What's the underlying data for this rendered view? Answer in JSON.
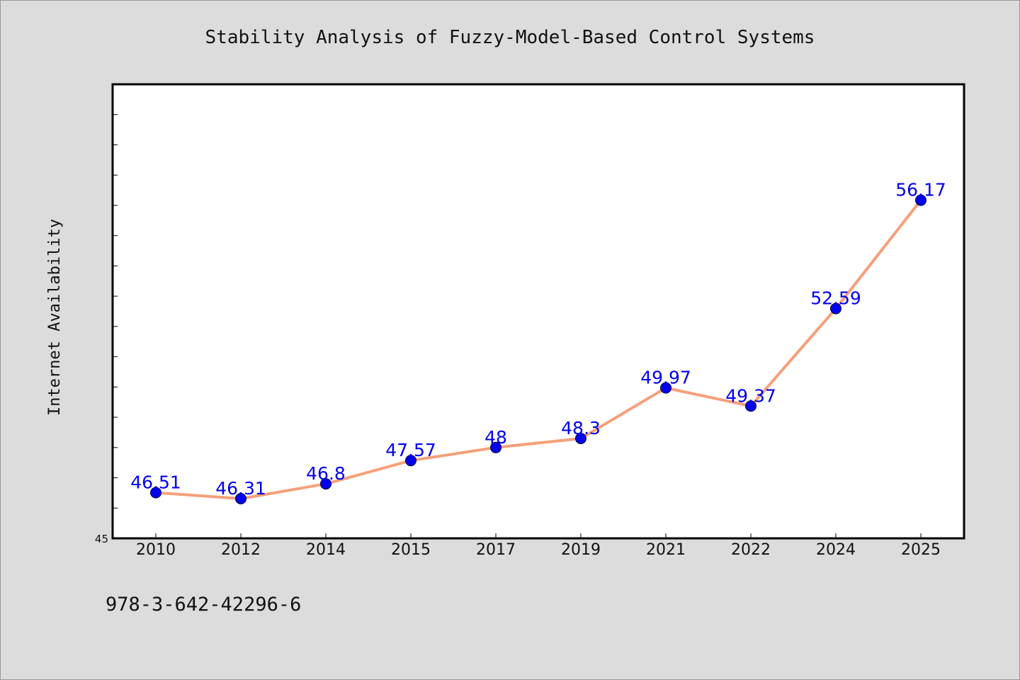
{
  "chart_data": {
    "type": "line",
    "title": "Stability Analysis of Fuzzy-Model-Based Control Systems",
    "xlabel": "",
    "ylabel": "Internet Availability",
    "categories": [
      "2010",
      "2012",
      "2014",
      "2015",
      "2017",
      "2019",
      "2021",
      "2022",
      "2024",
      "2025"
    ],
    "series": [
      {
        "values": [
          46.51,
          46.31,
          46.8,
          47.57,
          48,
          48.3,
          49.97,
          49.37,
          52.59,
          56.17
        ],
        "data_labels": [
          "46.51",
          "46.31",
          "46.8",
          "47.57",
          "48",
          "48.3",
          "49.97",
          "49.37",
          "52.59",
          "56.17"
        ]
      }
    ],
    "ylim": [
      45,
      60
    ],
    "y_tick_labels": [
      "45"
    ],
    "y_minor_tick_step": 1,
    "grid": false,
    "legend": "none",
    "colors": {
      "line": "#f5a07a",
      "marker": "#0000ee",
      "data_label": "#0000ee",
      "plot_background": "#ffffff",
      "figure_background": "#dcdcdc"
    }
  },
  "footnote": "978-3-642-42296-6"
}
